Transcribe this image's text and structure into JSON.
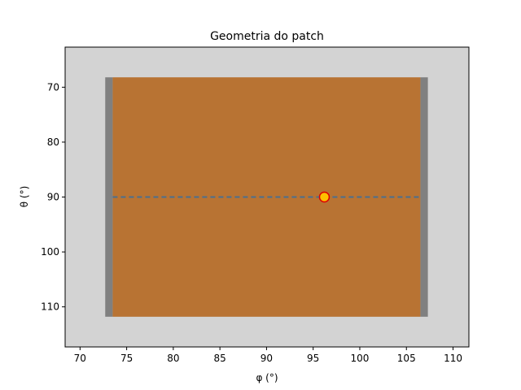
{
  "chart_data": {
    "type": "scatter",
    "title": "Geometria do patch",
    "xlabel": "φ (°)",
    "ylabel": "θ (°)",
    "xlim": [
      68.4,
      111.7
    ],
    "ylim": [
      117.3,
      62.7
    ],
    "y_inverted": true,
    "x_ticks": [
      70,
      75,
      80,
      85,
      90,
      95,
      100,
      105,
      110
    ],
    "y_ticks": [
      70,
      80,
      90,
      100,
      110
    ],
    "grid": false,
    "legend": "none",
    "colors": {
      "background": "#d3d3d3",
      "patch": "#b87333",
      "edge": "#808080",
      "line": "#4a6f8f",
      "point": "#ffc000",
      "point_edge": "#dd0000"
    },
    "patch": {
      "phi": [
        73.5,
        106.5
      ],
      "theta": [
        68.2,
        111.8
      ]
    },
    "edges": [
      {
        "phi": [
          72.7,
          73.5
        ],
        "theta": [
          68.2,
          111.8
        ]
      },
      {
        "phi": [
          106.5,
          107.3
        ],
        "theta": [
          68.2,
          111.8
        ]
      }
    ],
    "line": {
      "phi": [
        73.5,
        106.5
      ],
      "theta": 90
    },
    "point": {
      "phi": 96.2,
      "theta": 90
    }
  }
}
